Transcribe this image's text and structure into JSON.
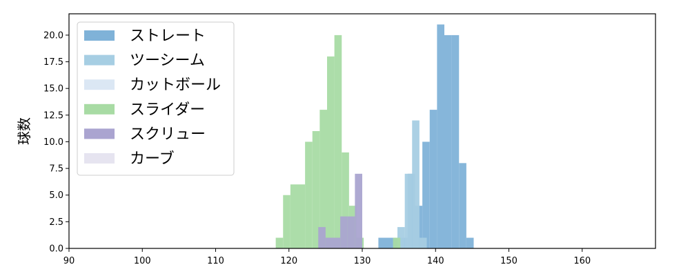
{
  "chart_data": {
    "type": "bar",
    "title": "",
    "xlabel": "",
    "ylabel": "球数",
    "xlim": [
      90,
      170
    ],
    "ylim": [
      0,
      22
    ],
    "xticks": [
      90,
      100,
      110,
      120,
      130,
      140,
      150,
      160
    ],
    "yticks": [
      0.0,
      2.5,
      5.0,
      7.5,
      10.0,
      12.5,
      15.0,
      17.5,
      20.0
    ],
    "ytick_labels": [
      "0.0",
      "2.5",
      "5.0",
      "7.5",
      "10.0",
      "12.5",
      "15.0",
      "17.5",
      "20.0"
    ],
    "grid": false,
    "legend_position": "top-left",
    "series": [
      {
        "name": "ストレート",
        "color": "#7fb2d8",
        "bins": [
          {
            "x0": 132.2,
            "x1": 133.2,
            "y": 1
          },
          {
            "x0": 133.2,
            "x1": 134.2,
            "y": 1
          },
          {
            "x0": 134.2,
            "x1": 135.2,
            "y": 1
          },
          {
            "x0": 135.2,
            "x1": 136.2,
            "y": 1
          },
          {
            "x0": 136.2,
            "x1": 137.2,
            "y": 7
          },
          {
            "x0": 137.2,
            "x1": 138.2,
            "y": 4
          },
          {
            "x0": 138.2,
            "x1": 139.2,
            "y": 10
          },
          {
            "x0": 139.2,
            "x1": 140.2,
            "y": 13
          },
          {
            "x0": 140.2,
            "x1": 141.2,
            "y": 21
          },
          {
            "x0": 141.2,
            "x1": 142.2,
            "y": 20
          },
          {
            "x0": 142.2,
            "x1": 143.2,
            "y": 20
          },
          {
            "x0": 143.2,
            "x1": 144.2,
            "y": 8
          },
          {
            "x0": 144.2,
            "x1": 145.2,
            "y": 1
          }
        ]
      },
      {
        "name": "ツーシーム",
        "color": "#a6cee3",
        "bins": [
          {
            "x0": 134.8,
            "x1": 135.8,
            "y": 2
          },
          {
            "x0": 135.8,
            "x1": 136.8,
            "y": 7
          },
          {
            "x0": 136.8,
            "x1": 137.8,
            "y": 12
          },
          {
            "x0": 137.8,
            "x1": 138.8,
            "y": 1
          }
        ]
      },
      {
        "name": "カットボール",
        "color": "#dbe7f4",
        "bins": []
      },
      {
        "name": "スライダー",
        "color": "#a8dba4",
        "bins": [
          {
            "x0": 118.2,
            "x1": 119.2,
            "y": 1
          },
          {
            "x0": 119.2,
            "x1": 120.2,
            "y": 5
          },
          {
            "x0": 120.2,
            "x1": 121.2,
            "y": 6
          },
          {
            "x0": 121.2,
            "x1": 122.2,
            "y": 6
          },
          {
            "x0": 122.2,
            "x1": 123.2,
            "y": 10
          },
          {
            "x0": 123.2,
            "x1": 124.2,
            "y": 11
          },
          {
            "x0": 124.2,
            "x1": 125.2,
            "y": 13
          },
          {
            "x0": 125.2,
            "x1": 126.2,
            "y": 18
          },
          {
            "x0": 126.2,
            "x1": 127.2,
            "y": 20
          },
          {
            "x0": 127.2,
            "x1": 128.2,
            "y": 9
          },
          {
            "x0": 128.2,
            "x1": 129.2,
            "y": 4
          },
          {
            "x0": 129.2,
            "x1": 130.2,
            "y": 1
          },
          {
            "x0": 134.2,
            "x1": 135.2,
            "y": 1
          }
        ]
      },
      {
        "name": "スクリュー",
        "color": "#aaa4d0",
        "bins": [
          {
            "x0": 124.0,
            "x1": 125.0,
            "y": 2
          },
          {
            "x0": 125.0,
            "x1": 126.0,
            "y": 1
          },
          {
            "x0": 126.0,
            "x1": 127.0,
            "y": 1
          },
          {
            "x0": 127.0,
            "x1": 128.0,
            "y": 3
          },
          {
            "x0": 128.0,
            "x1": 129.0,
            "y": 3
          },
          {
            "x0": 129.0,
            "x1": 130.0,
            "y": 7
          }
        ]
      },
      {
        "name": "カーブ",
        "color": "#e6e4f0",
        "bins": []
      }
    ]
  }
}
